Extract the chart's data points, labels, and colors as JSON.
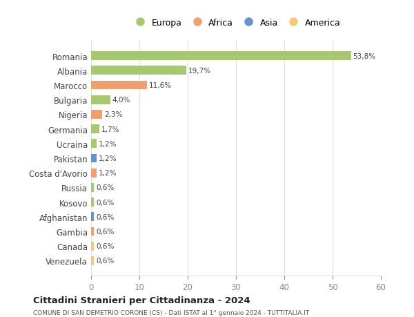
{
  "categories": [
    "Venezuela",
    "Canada",
    "Gambia",
    "Afghanistan",
    "Kosovo",
    "Russia",
    "Costa d'Avorio",
    "Pakistan",
    "Ucraina",
    "Germania",
    "Nigeria",
    "Bulgaria",
    "Marocco",
    "Albania",
    "Romania"
  ],
  "values": [
    0.6,
    0.6,
    0.6,
    0.6,
    0.6,
    0.6,
    1.2,
    1.2,
    1.2,
    1.7,
    2.3,
    4.0,
    11.6,
    19.7,
    53.8
  ],
  "labels": [
    "0,6%",
    "0,6%",
    "0,6%",
    "0,6%",
    "0,6%",
    "0,6%",
    "1,2%",
    "1,2%",
    "1,2%",
    "1,7%",
    "2,3%",
    "4,0%",
    "11,6%",
    "19,7%",
    "53,8%"
  ],
  "colors": [
    "#f5c97a",
    "#f5c97a",
    "#f0a070",
    "#6495c8",
    "#a8c870",
    "#a8c870",
    "#f0a070",
    "#6495c8",
    "#a8c870",
    "#a8c870",
    "#f0a070",
    "#a8c870",
    "#f0a070",
    "#a8c870",
    "#a8c870"
  ],
  "legend_labels": [
    "Europa",
    "Africa",
    "Asia",
    "America"
  ],
  "legend_colors": [
    "#a8c870",
    "#f0a070",
    "#6495c8",
    "#f5c97a"
  ],
  "title": "Cittadini Stranieri per Cittadinanza - 2024",
  "subtitle": "COMUNE DI SAN DEMETRIO CORONE (CS) - Dati ISTAT al 1° gennaio 2024 - TUTTITALIA.IT",
  "xlim": [
    0,
    60
  ],
  "xticks": [
    0,
    10,
    20,
    30,
    40,
    50,
    60
  ],
  "bg_color": "#ffffff",
  "grid_color": "#dddddd",
  "bar_height": 0.6
}
